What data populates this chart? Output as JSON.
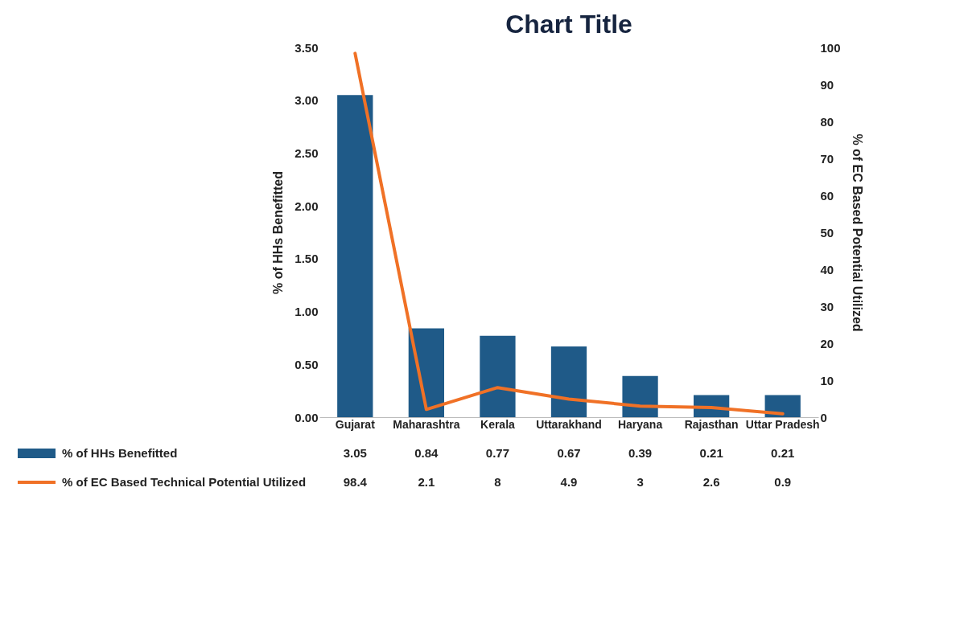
{
  "chart_data": {
    "type": "bar",
    "title": "Chart Title",
    "categories": [
      "Gujarat",
      "Maharashtra",
      "Kerala",
      "Uttarakhand",
      "Haryana",
      "Rajasthan",
      "Uttar Pradesh"
    ],
    "series": [
      {
        "name": "% of HHs Benefitted",
        "color": "#1f5a88",
        "values": [
          3.05,
          0.84,
          0.77,
          0.67,
          0.39,
          0.21,
          0.21
        ]
      },
      {
        "name": "% of EC Based Technical Potential Utilized",
        "type": "line",
        "axis": "y2",
        "color": "#f07126",
        "values": [
          98.4,
          2.1,
          8,
          4.9,
          3,
          2.6,
          0.9
        ]
      }
    ],
    "ylabel": "% of HHs Benefitted",
    "y2label": "% of EC Based Potential Utilized",
    "ylim": [
      0,
      3.5
    ],
    "yticks": [
      {
        "value": 0,
        "label": "0.00"
      },
      {
        "value": 0.5,
        "label": "0.50"
      },
      {
        "value": 1,
        "label": "1.00"
      },
      {
        "value": 1.5,
        "label": "1.50"
      },
      {
        "value": 2,
        "label": "2.00"
      },
      {
        "value": 2.5,
        "label": "2.50"
      },
      {
        "value": 3,
        "label": "3.00"
      },
      {
        "value": 3.5,
        "label": "3.50"
      }
    ],
    "y2lim": [
      0,
      100
    ],
    "y2ticks": [
      0,
      10,
      20,
      30,
      40,
      50,
      60,
      70,
      80,
      90,
      100
    ],
    "data_labels": true,
    "legend": "bottom",
    "grid": false,
    "marker": "none",
    "line_style": "solid"
  }
}
